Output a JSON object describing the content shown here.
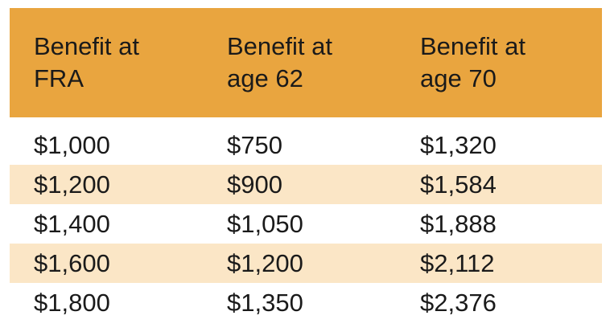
{
  "table": {
    "headers": [
      {
        "line1": "Benefit at",
        "line2": "FRA"
      },
      {
        "line1": "Benefit at",
        "line2": "age 62"
      },
      {
        "line1": "Benefit at",
        "line2": "age 70"
      }
    ],
    "rows": [
      {
        "fra": "$1,000",
        "age62": "$750",
        "age70": "$1,320"
      },
      {
        "fra": "$1,200",
        "age62": "$900",
        "age70": "$1,584"
      },
      {
        "fra": "$1,400",
        "age62": "$1,050",
        "age70": "$1,888"
      },
      {
        "fra": "$1,600",
        "age62": "$1,200",
        "age70": "$2,112"
      },
      {
        "fra": "$1,800",
        "age62": "$1,350",
        "age70": "$2,376"
      }
    ]
  },
  "colors": {
    "header_bg": "#E9A53F",
    "stripe_bg": "#FBE6C6",
    "text": "#1A1A1A"
  }
}
